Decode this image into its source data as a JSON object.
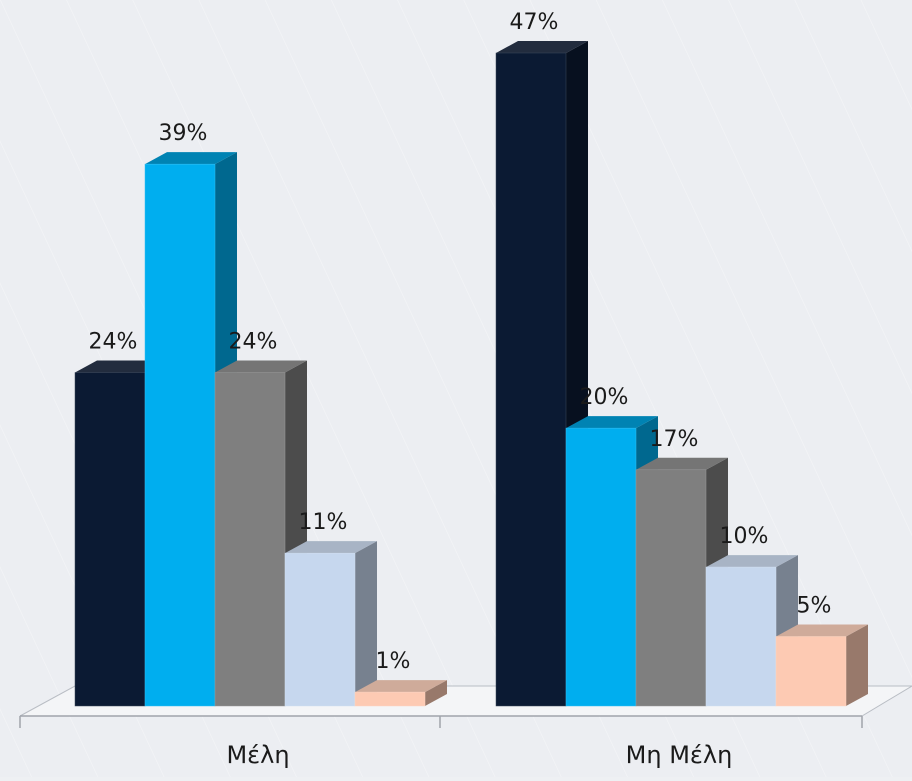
{
  "chart_data": {
    "type": "bar",
    "categories": [
      "Μέλη",
      "Μη Μέλη"
    ],
    "series": [
      {
        "values": [
          24,
          47
        ],
        "color": "#0b1a33",
        "labels": [
          "24%",
          "47%"
        ]
      },
      {
        "values": [
          39,
          20
        ],
        "color": "#00aeef",
        "labels": [
          "39%",
          "20%"
        ]
      },
      {
        "values": [
          24,
          17
        ],
        "color": "#7f7f7f",
        "labels": [
          "24%",
          "17%"
        ]
      },
      {
        "values": [
          11,
          10
        ],
        "color": "#c6d7ee",
        "labels": [
          "11%",
          "10%"
        ]
      },
      {
        "values": [
          1,
          5
        ],
        "color": "#fdcab3",
        "labels": [
          "1%",
          "5%"
        ]
      }
    ],
    "ylim": [
      0,
      47
    ],
    "grid": false,
    "legend": "none",
    "three_d": true
  }
}
